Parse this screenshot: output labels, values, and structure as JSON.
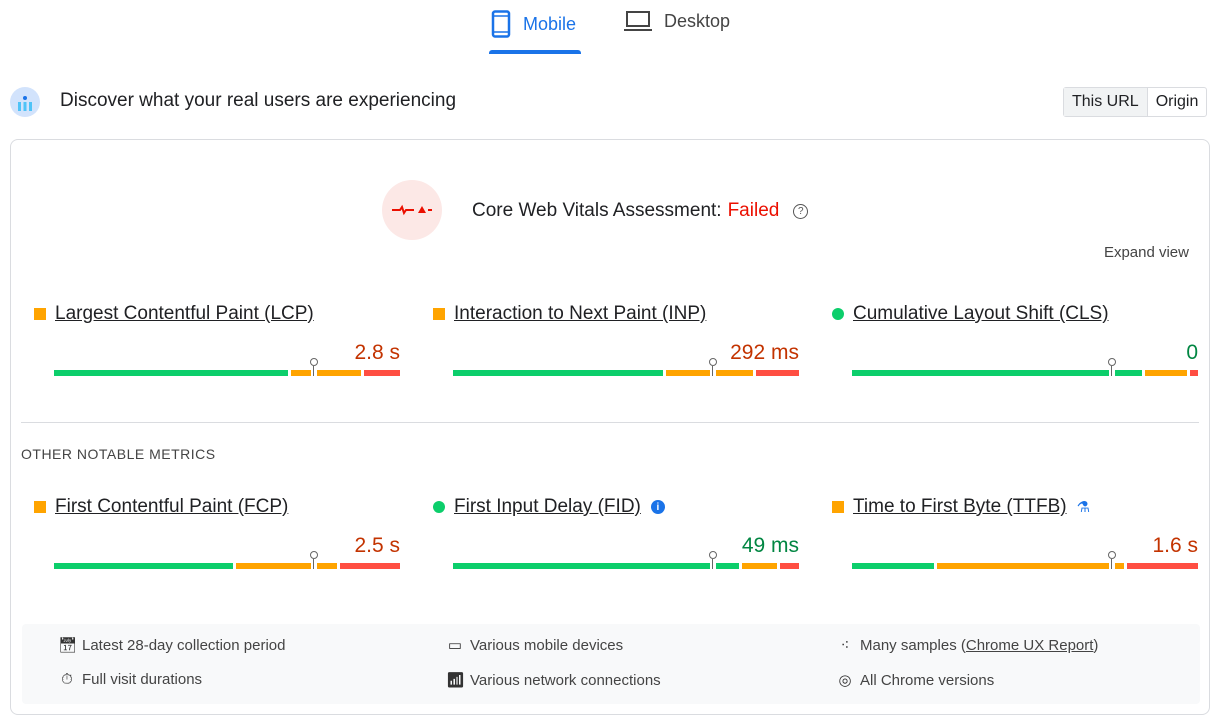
{
  "tabs": [
    {
      "label": "Mobile",
      "icon": "smartphone-icon",
      "active": true
    },
    {
      "label": "Desktop",
      "icon": "laptop-icon",
      "active": false
    }
  ],
  "header": {
    "title": "Discover what your real users are experiencing",
    "toggle": [
      "This URL",
      "Origin"
    ],
    "toggle_selected": "This URL"
  },
  "assessment": {
    "label": "Core Web Vitals Assessment:",
    "status": "Failed",
    "expand": "Expand view"
  },
  "colors": {
    "good": "#0cce6b",
    "needs_improvement": "#ffa400",
    "poor": "#ff4e42",
    "accent": "#1a73e8",
    "fail": "#eb0f00",
    "value_orange": "#c33300",
    "value_green": "#018642"
  },
  "core_metrics": [
    {
      "name": "Largest Contentful Paint (LCP)",
      "value": "2.8 s",
      "rating": "needs-improvement",
      "distribution_pct": [
        68,
        21,
        11
      ],
      "p75_pct": 75
    },
    {
      "name": "Interaction to Next Paint (INP)",
      "value": "292 ms",
      "rating": "needs-improvement",
      "distribution_pct": [
        61,
        26,
        13
      ],
      "p75_pct": 75
    },
    {
      "name": "Cumulative Layout Shift (CLS)",
      "value": "0",
      "rating": "good",
      "distribution_pct": [
        84,
        13,
        3
      ],
      "p75_pct": 75
    }
  ],
  "other_heading": "OTHER NOTABLE METRICS",
  "other_metrics": [
    {
      "name": "First Contentful Paint (FCP)",
      "value": "2.5 s",
      "rating": "needs-improvement",
      "distribution_pct": [
        52,
        30,
        18
      ],
      "p75_pct": 75
    },
    {
      "name": "First Input Delay (FID)",
      "value": "49 ms",
      "rating": "good",
      "distribution_pct": [
        83,
        11,
        6
      ],
      "p75_pct": 75,
      "badge": "info-icon"
    },
    {
      "name": "Time to First Byte (TTFB)",
      "value": "1.6 s",
      "rating": "needs-improvement",
      "distribution_pct": [
        24,
        55,
        21
      ],
      "p75_pct": 75,
      "badge": "flask-icon"
    }
  ],
  "footer": {
    "items": [
      {
        "icon": "calendar-icon",
        "text": "Latest 28-day collection period"
      },
      {
        "icon": "devices-icon",
        "text": "Various mobile devices"
      },
      {
        "icon": "samples-icon",
        "text": "Many samples (",
        "link": "Chrome UX Report",
        "after": ")"
      },
      {
        "icon": "timer-icon",
        "text": "Full visit durations"
      },
      {
        "icon": "network-icon",
        "text": "Various network connections"
      },
      {
        "icon": "chrome-icon",
        "text": "All Chrome versions"
      }
    ]
  }
}
